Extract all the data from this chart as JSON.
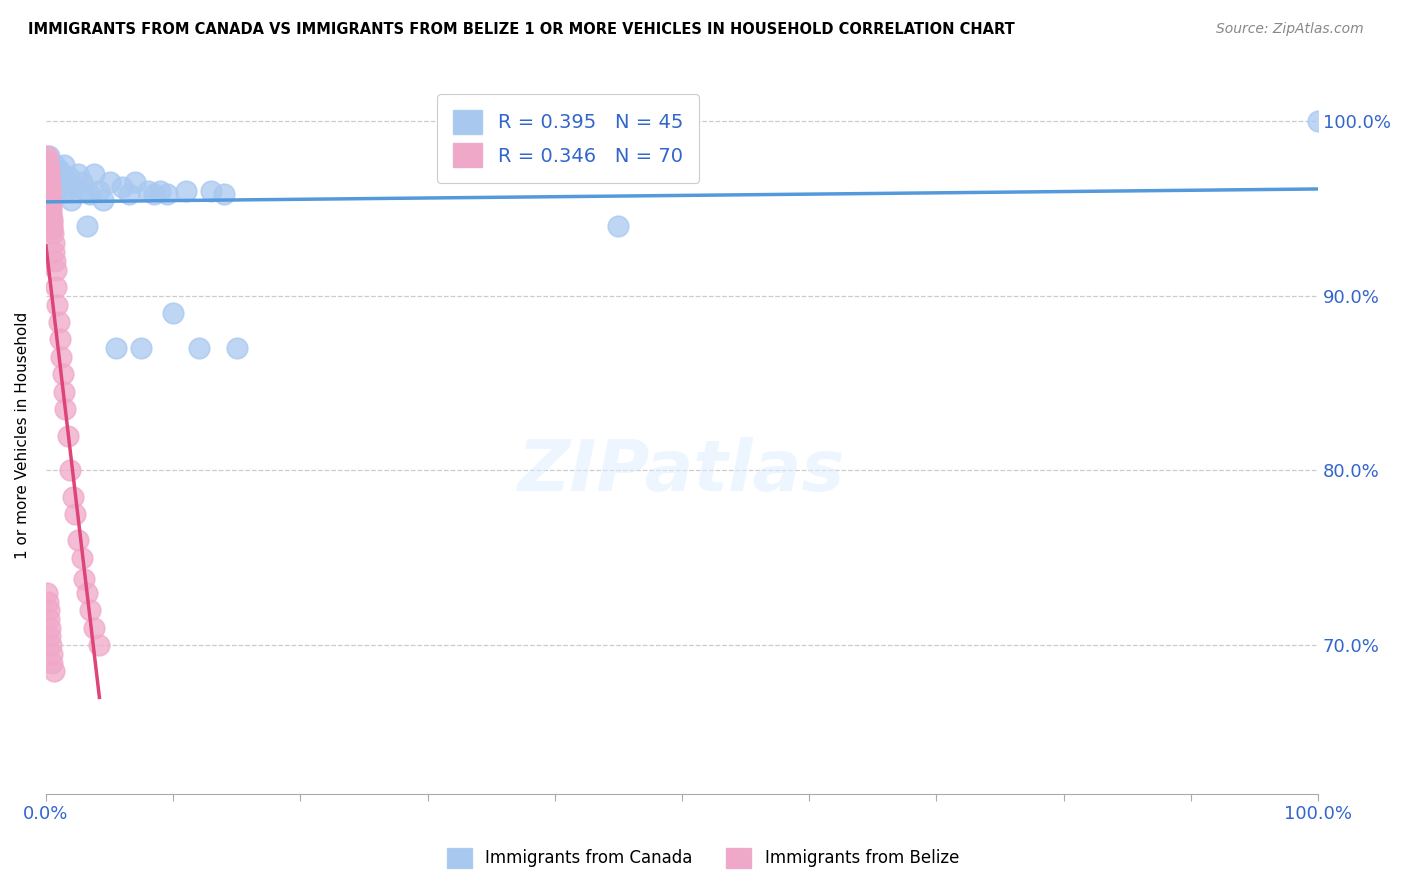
{
  "title": "IMMIGRANTS FROM CANADA VS IMMIGRANTS FROM BELIZE 1 OR MORE VEHICLES IN HOUSEHOLD CORRELATION CHART",
  "source": "Source: ZipAtlas.com",
  "ylabel": "1 or more Vehicles in Household",
  "ytick_labels": [
    "100.0%",
    "90.0%",
    "80.0%",
    "70.0%"
  ],
  "ytick_values": [
    1.0,
    0.9,
    0.8,
    0.7
  ],
  "canada_R": 0.395,
  "canada_N": 45,
  "belize_R": 0.346,
  "belize_N": 70,
  "canada_color": "#a8c8f0",
  "belize_color": "#f0a8c8",
  "canada_line_color": "#5599dd",
  "belize_line_color": "#dd4477",
  "canada_scatter_x": [
    0.001,
    0.002,
    0.003,
    0.004,
    0.005,
    0.006,
    0.007,
    0.008,
    0.009,
    0.01,
    0.011,
    0.012,
    0.013,
    0.014,
    0.015,
    0.016,
    0.018,
    0.02,
    0.022,
    0.025,
    0.028,
    0.03,
    0.032,
    0.035,
    0.038,
    0.042,
    0.045,
    0.05,
    0.055,
    0.06,
    0.065,
    0.07,
    0.075,
    0.08,
    0.085,
    0.09,
    0.095,
    0.1,
    0.11,
    0.12,
    0.13,
    0.14,
    0.15,
    0.45,
    1.0
  ],
  "canada_scatter_y": [
    0.975,
    0.98,
    0.972,
    0.968,
    0.965,
    0.97,
    0.975,
    0.968,
    0.96,
    0.972,
    0.965,
    0.97,
    0.968,
    0.975,
    0.965,
    0.96,
    0.968,
    0.955,
    0.962,
    0.97,
    0.965,
    0.96,
    0.94,
    0.958,
    0.97,
    0.96,
    0.955,
    0.965,
    0.87,
    0.962,
    0.958,
    0.965,
    0.87,
    0.96,
    0.958,
    0.96,
    0.958,
    0.89,
    0.96,
    0.87,
    0.96,
    0.958,
    0.87,
    0.94,
    1.0
  ],
  "belize_scatter_x": [
    0.0005,
    0.0007,
    0.0008,
    0.0009,
    0.001,
    0.001,
    0.0012,
    0.0013,
    0.0014,
    0.0015,
    0.0016,
    0.0017,
    0.0018,
    0.0019,
    0.002,
    0.002,
    0.0021,
    0.0022,
    0.0023,
    0.0024,
    0.0025,
    0.0026,
    0.0027,
    0.0028,
    0.003,
    0.003,
    0.0032,
    0.0034,
    0.0036,
    0.0038,
    0.004,
    0.0042,
    0.0044,
    0.0046,
    0.005,
    0.005,
    0.0055,
    0.006,
    0.0065,
    0.007,
    0.0075,
    0.008,
    0.009,
    0.01,
    0.011,
    0.012,
    0.013,
    0.014,
    0.015,
    0.017,
    0.019,
    0.021,
    0.023,
    0.025,
    0.028,
    0.03,
    0.032,
    0.035,
    0.038,
    0.042,
    0.001,
    0.0015,
    0.002,
    0.0025,
    0.003,
    0.0035,
    0.004,
    0.0045,
    0.005,
    0.006
  ],
  "belize_scatter_y": [
    0.978,
    0.975,
    0.98,
    0.972,
    0.976,
    0.97,
    0.974,
    0.968,
    0.972,
    0.966,
    0.97,
    0.975,
    0.964,
    0.968,
    0.972,
    0.965,
    0.968,
    0.962,
    0.966,
    0.96,
    0.964,
    0.96,
    0.958,
    0.962,
    0.956,
    0.96,
    0.954,
    0.958,
    0.952,
    0.95,
    0.948,
    0.946,
    0.944,
    0.942,
    0.94,
    0.938,
    0.936,
    0.93,
    0.925,
    0.92,
    0.915,
    0.905,
    0.895,
    0.885,
    0.875,
    0.865,
    0.855,
    0.845,
    0.835,
    0.82,
    0.8,
    0.785,
    0.775,
    0.76,
    0.75,
    0.738,
    0.73,
    0.72,
    0.71,
    0.7,
    0.73,
    0.725,
    0.72,
    0.715,
    0.71,
    0.705,
    0.7,
    0.695,
    0.69,
    0.685
  ],
  "xlim": [
    0.0,
    1.0
  ],
  "ylim": [
    0.615,
    1.025
  ],
  "figwidth": 14.06,
  "figheight": 8.92
}
